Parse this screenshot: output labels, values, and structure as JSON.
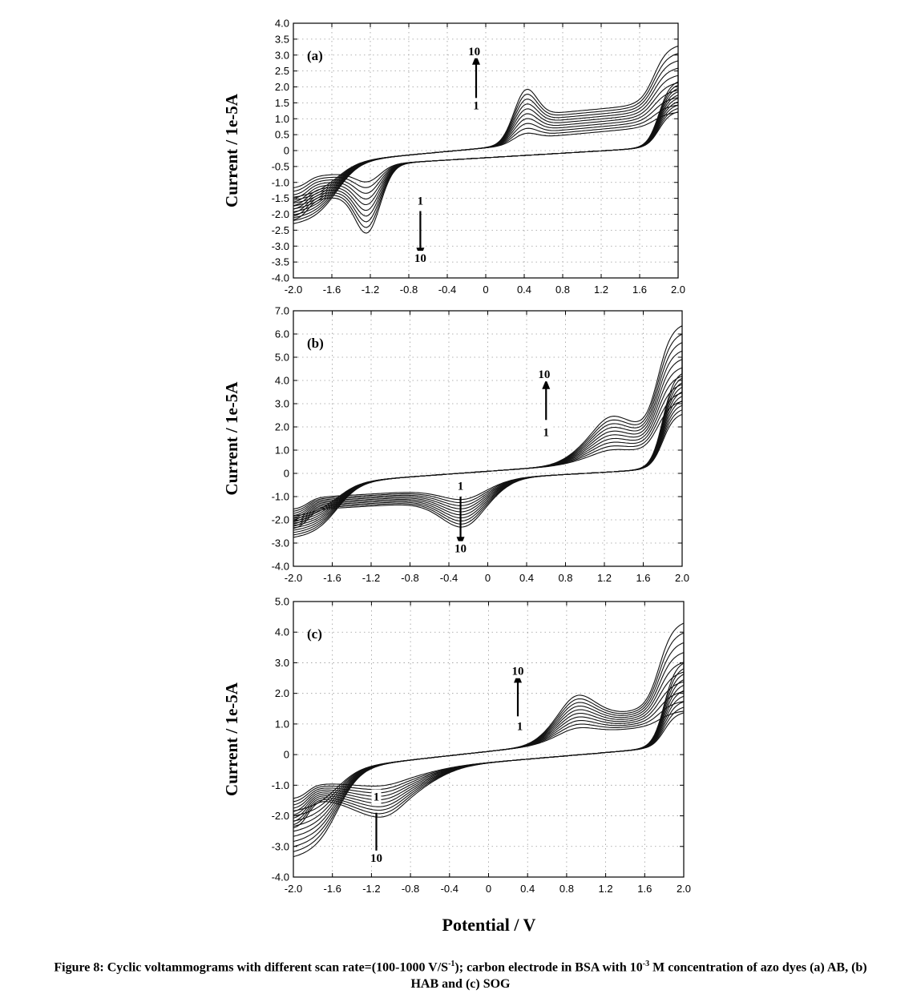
{
  "figure": {
    "common_xlabel": "Potential / V",
    "caption": {
      "part1": "Figure 8: Cyclic voltammograms with different scan rate=(100-1000 V/S",
      "sup1": "-1",
      "part2": "); carbon electrode in BSA with 10",
      "sup2": "-3",
      "part3": " M concentration of azo dyes (a) AB, (b)",
      "line2": "HAB and (c) SOG"
    }
  },
  "chart_data": [
    {
      "type": "line",
      "panel_label": "(a)",
      "ylabel": "Current / 1e-5A",
      "xlabel": "",
      "xlim": [
        -2.0,
        2.0
      ],
      "ylim": [
        -4.0,
        4.0
      ],
      "grid": true,
      "x_ticks": [
        "-2.0",
        "-1.6",
        "-1.2",
        "-0.8",
        "-0.4",
        "0",
        "0.4",
        "0.8",
        "1.2",
        "1.6",
        "2.0"
      ],
      "y_ticks": [
        "4.0",
        "3.5",
        "3.0",
        "2.5",
        "2.0",
        "1.5",
        "1.0",
        "0.5",
        "0",
        "-0.5",
        "-1.0",
        "-1.5",
        "-2.0",
        "-2.5",
        "-3.0",
        "-3.5",
        "-4.0"
      ],
      "annotations": [
        {
          "text": "10",
          "x": -0.12,
          "y": 3.0
        },
        {
          "text": "1",
          "x": -0.1,
          "y": 1.3
        },
        {
          "text": "1",
          "x": -0.68,
          "y": -1.7
        },
        {
          "text": "10",
          "x": -0.68,
          "y": -3.5
        }
      ],
      "arrows": [
        {
          "x": -0.1,
          "y_from": 1.55,
          "y_to": 2.75
        },
        {
          "x": -0.68,
          "y_from": -1.9,
          "y_to": -3.1
        }
      ],
      "curves": 10,
      "model": {
        "anodic": {
          "base_slope": 0.55,
          "peak_pos": 0.4,
          "peak_h0": 0.4,
          "peak_h1": 2.0,
          "peak_w": 0.17,
          "step": 1,
          "plateau": 0.12
        },
        "cathodic": {
          "base_slope": 0.3,
          "peak_pos": -1.22,
          "peak_h0": -0.6,
          "peak_h1": -2.4,
          "peak_w": 0.18,
          "step": 1,
          "plateau": 0.15
        },
        "end_high": [
          2.6,
          4.0
        ],
        "end_low": [
          -1.2,
          -2.2
        ],
        "cross": 1.25
      }
    },
    {
      "type": "line",
      "panel_label": "(b)",
      "ylabel": "Current / 1e-5A",
      "xlabel": "",
      "xlim": [
        -2.0,
        2.0
      ],
      "ylim": [
        -4.0,
        7.0
      ],
      "grid": true,
      "x_ticks": [
        "-2.0",
        "-1.6",
        "-1.2",
        "-0.8",
        "-0.4",
        "0",
        "0.4",
        "0.8",
        "1.2",
        "1.6",
        "2.0"
      ],
      "y_ticks": [
        "7.0",
        "6.0",
        "5.0",
        "4.0",
        "3.0",
        "2.0",
        "1.0",
        "0",
        "-1.0",
        "-2.0",
        "-3.0",
        "-4.0"
      ],
      "annotations": [
        {
          "text": "10",
          "x": 0.58,
          "y": 4.1
        },
        {
          "text": "1",
          "x": 0.6,
          "y": 1.6
        },
        {
          "text": "1",
          "x": -0.28,
          "y": -0.7
        },
        {
          "text": "10",
          "x": -0.28,
          "y": -3.4
        }
      ],
      "arrows": [
        {
          "x": 0.6,
          "y_from": 2.3,
          "y_to": 3.7
        },
        {
          "x": -0.28,
          "y_from": -1.0,
          "y_to": -2.8
        }
      ],
      "curves": 10,
      "model": {
        "anodic": {
          "base_slope": 0.6,
          "peak_pos": 1.2,
          "peak_h0": 0.6,
          "peak_h1": 2.2,
          "peak_w": 0.35,
          "step": 1,
          "plateau": 0.25
        },
        "cathodic": {
          "base_slope": 0.4,
          "peak_pos": -0.2,
          "peak_h0": -0.9,
          "peak_h1": -2.2,
          "peak_w": 0.35,
          "step": 1,
          "plateau": 0.3
        },
        "end_high": [
          4.4,
          7.0
        ],
        "end_low": [
          -1.6,
          -2.7
        ],
        "cross": 1.0
      }
    },
    {
      "type": "line",
      "panel_label": "(c)",
      "ylabel": "Current / 1e-5A",
      "xlabel": "",
      "xlim": [
        -2.0,
        2.0
      ],
      "ylim": [
        -4.0,
        5.0
      ],
      "grid": true,
      "x_ticks": [
        "-2.0",
        "-1.6",
        "-1.2",
        "-0.8",
        "-0.4",
        "0",
        "0.4",
        "0.8",
        "1.2",
        "1.6",
        "2.0"
      ],
      "y_ticks": [
        "5.0",
        "4.0",
        "3.0",
        "2.0",
        "1.0",
        "0",
        "-1.0",
        "-2.0",
        "-3.0",
        "-4.0"
      ],
      "annotations": [
        {
          "text": "10",
          "x": 0.3,
          "y": 2.6
        },
        {
          "text": "1",
          "x": 0.32,
          "y": 0.8
        },
        {
          "text": "1",
          "x": -1.15,
          "y": -1.5
        },
        {
          "text": "10",
          "x": -1.15,
          "y": -3.5
        }
      ],
      "arrows": [
        {
          "x": 0.3,
          "y_from": 1.25,
          "y_to": 2.4
        },
        {
          "x": -1.15,
          "y_from": -1.9,
          "y_to": -3.2
        }
      ],
      "curves": 10,
      "model": {
        "anodic": {
          "base_slope": 0.7,
          "peak_pos": 0.85,
          "peak_h0": 0.5,
          "peak_h1": 1.7,
          "peak_w": 0.3,
          "step": 1,
          "plateau": 0.3
        },
        "cathodic": {
          "base_slope": 0.45,
          "peak_pos": -1.0,
          "peak_h0": -0.5,
          "peak_h1": -1.6,
          "peak_w": 0.5,
          "step": 1,
          "plateau": 0.25
        },
        "end_high": [
          2.6,
          5.0
        ],
        "end_low": [
          -1.5,
          -3.3
        ],
        "cross": 0.95
      }
    }
  ]
}
